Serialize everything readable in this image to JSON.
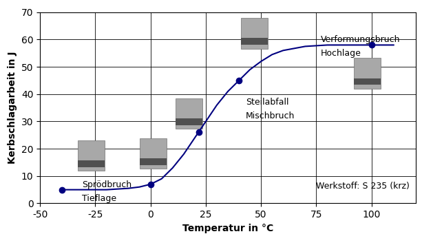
{
  "chart_data": {
    "type": "line",
    "xlabel": "Temperatur in °C",
    "ylabel": "Kerbschlagarbeit in J",
    "xlim": [
      -50,
      120
    ],
    "ylim": [
      0,
      70
    ],
    "xticks": [
      -50,
      -25,
      0,
      25,
      50,
      75,
      100
    ],
    "yticks": [
      0,
      10,
      20,
      30,
      40,
      50,
      60,
      70
    ],
    "grid": true,
    "series": [
      {
        "type": "line",
        "color": "#000080",
        "line_style": "solid",
        "x": [
          -40,
          -30,
          -20,
          -10,
          -5,
          0,
          5,
          10,
          15,
          20,
          25,
          30,
          35,
          40,
          45,
          50,
          55,
          60,
          70,
          80,
          90,
          100,
          110
        ],
        "values": [
          5,
          5,
          5,
          5.5,
          6,
          7,
          9,
          13,
          18,
          24,
          30,
          36,
          41,
          45,
          49,
          52,
          54.5,
          56,
          57.5,
          58,
          58,
          58,
          58
        ]
      },
      {
        "type": "scatter",
        "color": "#000080",
        "marker": "o",
        "x": [
          -40,
          0,
          22,
          40,
          100
        ],
        "values": [
          5,
          7,
          26,
          45,
          58
        ]
      }
    ],
    "annotations": [
      {
        "text": "Sprödbruch",
        "x": -31,
        "y": 6.8
      },
      {
        "text": "Tieflage",
        "x": -31,
        "y": 1.8
      },
      {
        "text": "Steilabfall",
        "x": 43,
        "y": 37
      },
      {
        "text": "Mischbruch",
        "x": 43,
        "y": 32
      },
      {
        "text": "Verformungsbruch",
        "x": 77,
        "y": 60
      },
      {
        "text": "Hochlage",
        "x": 77,
        "y": 55
      },
      {
        "text": "Werkstoff: S 235 (krz)",
        "x": 75,
        "y": 6.3
      }
    ]
  }
}
